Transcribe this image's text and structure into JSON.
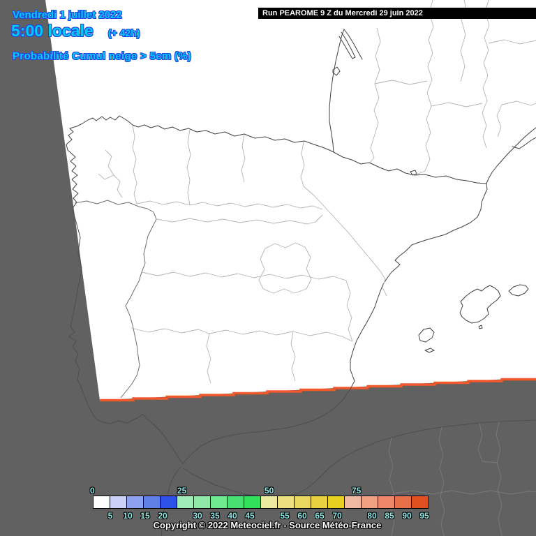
{
  "header": {
    "date": "Vendredi 1 juillet 2022",
    "time": "5:00 locale",
    "offset": "(+ 42h)",
    "product": "Probabilité Cumul neige > 5cm (%)"
  },
  "run_banner": {
    "text": "Run PEAROME 9 Z du Mercredi 29 juin 2022"
  },
  "footer": {
    "copyright": "Copyright © 2022 Meteociel.fr - Source Météo-France"
  },
  "scale": {
    "unit": "%",
    "top_labels": [
      {
        "text": "0",
        "boundary": 0
      },
      {
        "text": "25",
        "boundary": 5
      },
      {
        "text": "50",
        "boundary": 10
      },
      {
        "text": "75",
        "boundary": 15
      }
    ],
    "bottom_labels": [
      {
        "text": "5",
        "boundary": 1
      },
      {
        "text": "10",
        "boundary": 2
      },
      {
        "text": "15",
        "boundary": 3
      },
      {
        "text": "20",
        "boundary": 4
      },
      {
        "text": "30",
        "boundary": 6
      },
      {
        "text": "35",
        "boundary": 7
      },
      {
        "text": "40",
        "boundary": 8
      },
      {
        "text": "45",
        "boundary": 9
      },
      {
        "text": "55",
        "boundary": 11
      },
      {
        "text": "60",
        "boundary": 12
      },
      {
        "text": "65",
        "boundary": 13
      },
      {
        "text": "70",
        "boundary": 14
      },
      {
        "text": "80",
        "boundary": 16
      },
      {
        "text": "85",
        "boundary": 17
      },
      {
        "text": "90",
        "boundary": 18
      },
      {
        "text": "95",
        "boundary": 19
      }
    ],
    "cells": [
      {
        "from": 0,
        "color": "#ffffff"
      },
      {
        "from": 5,
        "color": "#c9d1f9"
      },
      {
        "from": 10,
        "color": "#8ca2f0"
      },
      {
        "from": 15,
        "color": "#6080e8"
      },
      {
        "from": 20,
        "color": "#2c50e8"
      },
      {
        "from": 25,
        "color": "#a0ecb8"
      },
      {
        "from": 30,
        "color": "#90e8a8"
      },
      {
        "from": 35,
        "color": "#70e890"
      },
      {
        "from": 40,
        "color": "#48e070"
      },
      {
        "from": 45,
        "color": "#30e058"
      },
      {
        "from": 50,
        "color": "#ece8a0"
      },
      {
        "from": 55,
        "color": "#ece080"
      },
      {
        "from": 60,
        "color": "#e8d860"
      },
      {
        "from": 65,
        "color": "#e8d040"
      },
      {
        "from": 70,
        "color": "#e8d020"
      },
      {
        "from": 75,
        "color": "#f0b8a0"
      },
      {
        "from": 80,
        "color": "#f0a080"
      },
      {
        "from": 85,
        "color": "#ec8868"
      },
      {
        "from": 90,
        "color": "#e87048"
      },
      {
        "from": 95,
        "color": "#e05020"
      }
    ]
  },
  "map": {
    "colors": {
      "outside": "#616161",
      "domain": "#ffffff",
      "domain_edge": "#f1592b",
      "coast": "#404040",
      "border": "#6e6e6e",
      "admin": "#b3b3b3",
      "outside_coast": "#4d4d4d",
      "outside_admin": "#7b7b7b",
      "cyan_fill": "#00ccff",
      "cyan_outline": "#2443dd",
      "scale_fill": "#8fe8e8"
    }
  }
}
